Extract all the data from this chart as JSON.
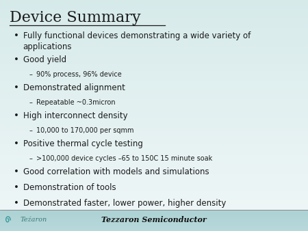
{
  "title": "Device Summary",
  "bg_color_top": "#3a9a9b",
  "bg_color_bottom": "#b8d8da",
  "text_color": "#1a1a1a",
  "title_fontsize": 16,
  "bullet_fontsize": 8.5,
  "sub_fontsize": 7.0,
  "footer_text": "Tezzaron Semiconductor",
  "footer_fontsize": 8,
  "bullets": [
    {
      "text": "Fully functional devices demonstrating a wide variety of\napplications",
      "level": 0
    },
    {
      "text": "Good yield",
      "level": 0
    },
    {
      "text": "90% process, 96% device",
      "level": 1
    },
    {
      "text": "Demonstrated alignment",
      "level": 0
    },
    {
      "text": "Repeatable ~0.3micron",
      "level": 1
    },
    {
      "text": "High interconnect density",
      "level": 0
    },
    {
      "text": "10,000 to 170,000 per sqmm",
      "level": 1
    },
    {
      "text": "Positive thermal cycle testing",
      "level": 0
    },
    {
      "text": ">100,000 device cycles –65 to 150C 15 minute soak",
      "level": 1
    },
    {
      "text": "Good correlation with models and simulations",
      "level": 0
    },
    {
      "text": "Demonstration of tools",
      "level": 0
    },
    {
      "text": "Demonstrated faster, lower power, higher density",
      "level": 0
    }
  ]
}
